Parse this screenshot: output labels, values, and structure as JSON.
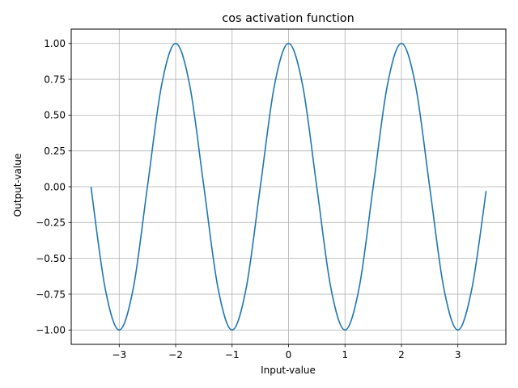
{
  "chart_data": {
    "type": "line",
    "title": "cos activation function",
    "xlabel": "Input-value",
    "ylabel": "Output-value",
    "xlim": [
      -3.85,
      3.85
    ],
    "ylim": [
      -1.1,
      1.1
    ],
    "x_ticks": [
      -3,
      -2,
      -1,
      0,
      1,
      2,
      3
    ],
    "x_tick_labels": [
      "−3",
      "−2",
      "−1",
      "0",
      "1",
      "2",
      "3"
    ],
    "y_ticks": [
      -1.0,
      -0.75,
      -0.5,
      -0.25,
      0.0,
      0.25,
      0.5,
      0.75,
      1.0
    ],
    "y_tick_labels": [
      "−1.00",
      "−0.75",
      "−0.50",
      "−0.25",
      "0.00",
      "0.25",
      "0.50",
      "0.75",
      "1.00"
    ],
    "grid": true,
    "series": [
      {
        "color": "#1f77b4",
        "x": [
          -3.5,
          -3.25,
          -3.0,
          -2.75,
          -2.5,
          -2.25,
          -2.0,
          -1.75,
          -1.5,
          -1.25,
          -1.0,
          -0.75,
          -0.5,
          -0.25,
          0.0,
          0.25,
          0.5,
          0.75,
          1.0,
          1.25,
          1.5,
          1.75,
          2.0,
          2.25,
          2.5,
          2.75,
          3.0,
          3.25,
          3.5
        ],
        "y": [
          0.0,
          -0.707,
          -1.0,
          -0.707,
          0.0,
          0.707,
          1.0,
          0.707,
          0.0,
          -0.707,
          -1.0,
          -0.707,
          0.0,
          0.707,
          1.0,
          0.707,
          0.0,
          -0.707,
          -1.0,
          -0.707,
          0.0,
          0.707,
          1.0,
          0.707,
          0.0,
          -0.707,
          -1.0,
          -0.707,
          -0.03
        ]
      }
    ]
  }
}
